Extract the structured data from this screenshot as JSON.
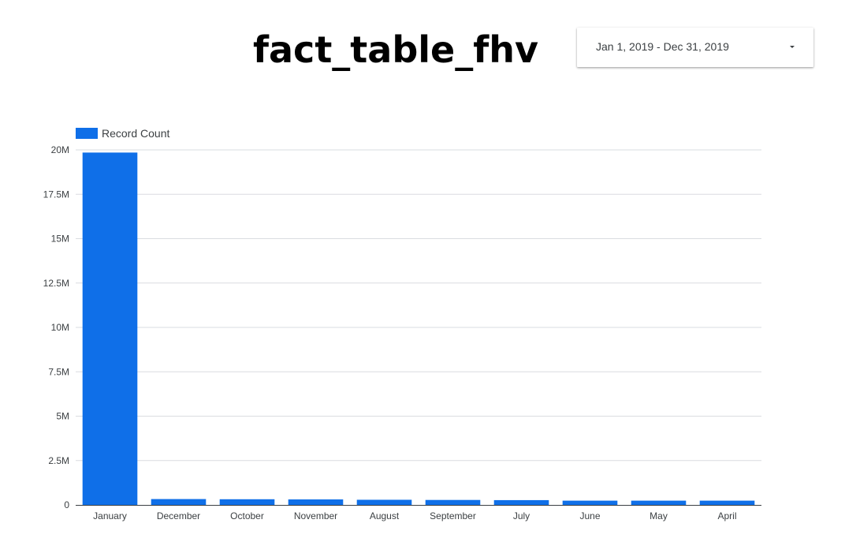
{
  "report": {
    "title": "fact_table_fhv"
  },
  "date_range": {
    "label": "Jan 1, 2019 - Dec 31, 2019",
    "icon": "caret-down-icon"
  },
  "chart_data": {
    "type": "bar",
    "title": "",
    "xlabel": "",
    "ylabel": "",
    "legend": {
      "placement": "top-left",
      "entries": [
        "Record Count"
      ]
    },
    "grid": true,
    "categories": [
      "January",
      "December",
      "October",
      "November",
      "August",
      "September",
      "July",
      "June",
      "May",
      "April"
    ],
    "series": [
      {
        "name": "Record Count",
        "color": "#0f6fe8",
        "values": [
          19850000,
          330000,
          320000,
          310000,
          290000,
          280000,
          270000,
          240000,
          240000,
          240000
        ]
      }
    ],
    "ylim": [
      0,
      20000000
    ],
    "y_ticks": [
      0,
      2500000,
      5000000,
      7500000,
      10000000,
      12500000,
      15000000,
      17500000,
      20000000
    ],
    "y_tick_labels": [
      "0",
      "2.5M",
      "5M",
      "7.5M",
      "10M",
      "12.5M",
      "15M",
      "17.5M",
      "20M"
    ]
  }
}
